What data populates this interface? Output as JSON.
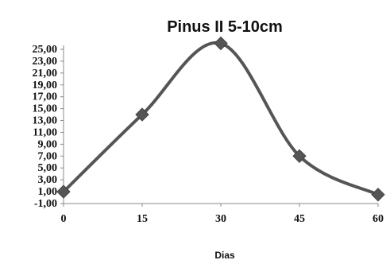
{
  "chart_data": {
    "type": "line",
    "title": "Pinus II 5-10cm",
    "xlabel": "Dias",
    "ylabel": "",
    "x": [
      0,
      15,
      30,
      45,
      60
    ],
    "x_tick_labels": [
      "0",
      "15",
      "30",
      "45",
      "60"
    ],
    "y_tick_labels": [
      "-1,00",
      "1,00",
      "3,00",
      "5,00",
      "7,00",
      "9,00",
      "11,00",
      "13,00",
      "15,00",
      "17,00",
      "19,00",
      "21,00",
      "23,00",
      "25,00"
    ],
    "ylim": [
      -1,
      26
    ],
    "series": [
      {
        "values": [
          1.0,
          14.0,
          26.0,
          7.0,
          0.5
        ]
      }
    ],
    "line_style": "smoothed",
    "marker": "diamond",
    "grid": false,
    "colors": {
      "line": "#555555",
      "marker": "#555555",
      "axis": "#888888"
    }
  }
}
